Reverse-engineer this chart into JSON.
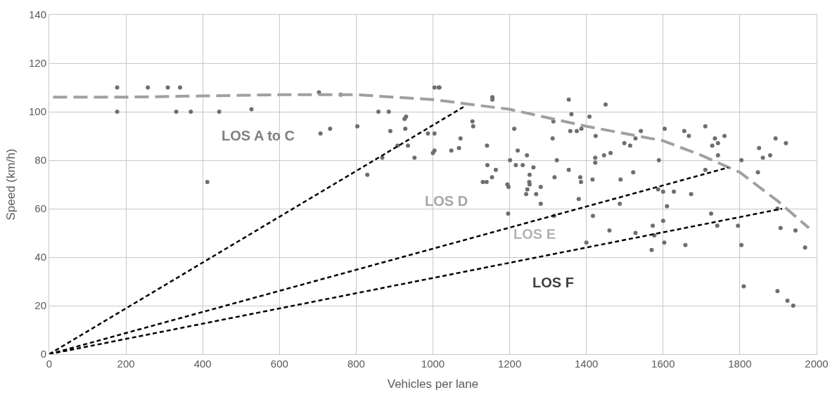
{
  "chart_data": {
    "type": "scatter",
    "xlabel": "Vehicles per lane",
    "ylabel": "Speed (km/h)",
    "xlim": [
      0,
      2000
    ],
    "xticks": [
      0,
      200,
      400,
      600,
      800,
      1000,
      1200,
      1400,
      1600,
      1800,
      2000
    ],
    "ylim": [
      0,
      140
    ],
    "yticks": [
      0,
      20,
      40,
      60,
      80,
      100,
      120,
      140
    ],
    "grid": true,
    "legend": false,
    "series": [
      {
        "color": "#6e6e6e",
        "marker": "circle",
        "x": [
          177,
          177,
          257,
          309,
          341,
          331,
          369,
          443,
          527,
          412,
          703,
          760,
          707,
          732,
          803,
          829,
          858,
          885,
          930,
          926,
          889,
          928,
          908,
          935,
          868,
          952,
          987,
          1004,
          1004,
          1000,
          1004,
          1015,
          1017,
          1048,
          1068,
          1072,
          1103,
          1105,
          1155,
          1155,
          1141,
          1142,
          1164,
          1130,
          1140,
          1154,
          1194,
          1197,
          1196,
          1201,
          1212,
          1216,
          1234,
          1221,
          1245,
          1262,
          1252,
          1251,
          1252,
          1246,
          1243,
          1269,
          1281,
          1281,
          1314,
          1312,
          1323,
          1317,
          1316,
          1354,
          1361,
          1358,
          1375,
          1387,
          1354,
          1384,
          1386,
          1380,
          1408,
          1424,
          1423,
          1423,
          1446,
          1463,
          1416,
          1417,
          1400,
          1450,
          1460,
          1489,
          1487,
          1499,
          1514,
          1522,
          1528,
          1542,
          1528,
          1604,
          1589,
          1587,
          1600,
          1628,
          1673,
          1610,
          1573,
          1600,
          1577,
          1570,
          1603,
          1658,
          1655,
          1667,
          1710,
          1735,
          1728,
          1743,
          1760,
          1743,
          1710,
          1725,
          1741,
          1795,
          1804,
          1804,
          1810,
          1847,
          1850,
          1860,
          1879,
          1893,
          1920,
          1898,
          1906,
          1945,
          1970,
          1898,
          1924,
          1939
        ],
        "values": [
          110,
          100,
          110,
          110,
          110,
          100,
          100,
          100,
          101,
          71,
          108,
          107,
          91,
          93,
          94,
          74,
          100,
          100,
          98,
          97,
          92,
          93,
          86,
          86,
          81,
          81,
          91,
          91,
          84,
          83,
          110,
          110,
          110,
          84,
          85,
          89,
          96,
          94,
          106,
          105,
          86,
          78,
          76,
          71,
          71,
          73,
          70,
          69,
          58,
          80,
          93,
          78,
          78,
          84,
          82,
          77,
          74,
          71,
          70,
          68,
          66,
          66,
          69,
          62,
          96,
          89,
          80,
          73,
          57,
          105,
          99,
          92,
          92,
          93,
          76,
          73,
          71,
          64,
          98,
          90,
          81,
          79,
          82,
          83,
          72,
          57,
          46,
          103,
          51,
          72,
          62,
          87,
          86,
          75,
          50,
          92,
          89,
          93,
          80,
          68,
          67,
          67,
          66,
          61,
          53,
          55,
          49,
          43,
          46,
          45,
          92,
          90,
          94,
          89,
          86,
          87,
          90,
          82,
          76,
          58,
          53,
          53,
          80,
          45,
          28,
          75,
          85,
          81,
          82,
          89,
          87,
          60,
          52,
          51,
          44,
          26,
          22,
          20
        ]
      },
      {
        "type": "line",
        "color": "#a0a0a0",
        "line_style": "dashed",
        "marker": "none",
        "x": [
          10,
          200,
          400,
          600,
          800,
          1000,
          1100,
          1200,
          1400,
          1600,
          1700,
          1800,
          1900,
          1980
        ],
        "values": [
          106,
          106,
          106.5,
          107,
          107,
          105,
          103,
          101,
          94,
          88,
          82,
          75,
          63,
          52
        ]
      },
      {
        "type": "line",
        "color": "#000000",
        "line_style": "dotted",
        "marker": "none",
        "x": [
          0,
          1080
        ],
        "values": [
          0,
          102
        ]
      },
      {
        "type": "line",
        "color": "#000000",
        "line_style": "dotted",
        "marker": "none",
        "x": [
          0,
          1770
        ],
        "values": [
          0,
          77
        ]
      },
      {
        "type": "line",
        "color": "#000000",
        "line_style": "dotted",
        "marker": "none",
        "x": [
          0,
          1910
        ],
        "values": [
          0,
          60
        ]
      }
    ],
    "annotations": [
      "LOS A to C",
      "LOS D",
      "LOS E",
      "LOS F"
    ]
  }
}
